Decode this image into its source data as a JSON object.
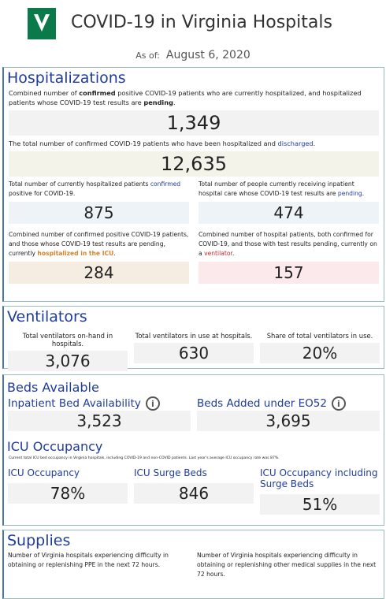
{
  "header": {
    "title": "COVID-19 in Virginia Hospitals",
    "as_of_label": "As of:",
    "as_of_date": "August 6, 2020"
  },
  "hospitalizations": {
    "title": "Hospitalizations",
    "current": {
      "description": [
        {
          "text": "Combined number of "
        },
        {
          "text": "confirmed",
          "bold": true
        },
        {
          "text": " positive COVID-19 patients who are currently hospitalized, and hospitalized patients whose COVID-19 test results are "
        },
        {
          "text": "pending",
          "bold": true
        },
        {
          "text": "."
        }
      ],
      "value": "1,349"
    },
    "discharged": {
      "description": [
        {
          "text": "The total number of confirmed COVID-19 patients who have been hospitalized and "
        },
        {
          "text": "discharged",
          "color": "#1f3c9c"
        },
        {
          "text": "."
        }
      ],
      "value": "12,635"
    },
    "confirmed": {
      "description": [
        {
          "text": "Total number of currently hospitalized patients "
        },
        {
          "text": "confirmed",
          "color": "#1f3c9c"
        },
        {
          "text": " positive for COVID-19."
        }
      ],
      "value": "875"
    },
    "pending": {
      "description": [
        {
          "text": "Total number of people currently receiving inpatient hospital care whose COVID-19 test results are "
        },
        {
          "text": "pending",
          "color": "#1f3c9c"
        },
        {
          "text": "."
        }
      ],
      "value": "474"
    },
    "icu": {
      "description": [
        {
          "text": "Combined number of confirmed positive COVID-19 patients, and those whose COVID-19 test results are pending, currently "
        },
        {
          "text": "hospitalized in the ICU",
          "color": "#d9822b",
          "bold": true
        },
        {
          "text": "."
        }
      ],
      "value": "284"
    },
    "ventilator": {
      "description": [
        {
          "text": "Combined number of hospital patients, both confirmed for COVID-19, and those with test results pending, currently on a "
        },
        {
          "text": "ventilator",
          "color": "#c0282d"
        },
        {
          "text": "."
        }
      ],
      "value": "157"
    }
  },
  "ventilators": {
    "title": "Ventilators",
    "metrics": [
      {
        "label": "Total ventilators on-hand in hospitals.",
        "value": "3,076"
      },
      {
        "label": "Total ventilators in use at hospitals.",
        "value": "630"
      },
      {
        "label": "Share of total ventilators in use.",
        "value": "20%"
      }
    ]
  },
  "beds_available": {
    "title": "Beds Available",
    "metrics": [
      {
        "label": "Inpatient Bed Availability",
        "value": "3,523"
      },
      {
        "label": "Beds Added under EO52",
        "value": "3,695"
      }
    ]
  },
  "icu_occupancy": {
    "title": "ICU Occupancy",
    "note": "Current total ICU bed occupancy in Virginia hospitals, including COVID-19 and non-COVID patients. Last year's average ICU occupancy rate was 87%.",
    "metrics": [
      {
        "label": "ICU Occupancy",
        "value": "78%"
      },
      {
        "label": "ICU Surge Beds",
        "value": "846"
      },
      {
        "label": "ICU Occupancy including Surge Beds",
        "value": "51%"
      }
    ]
  },
  "supplies": {
    "title": "Supplies",
    "metrics": [
      {
        "label": "Number of Virginia hospitals experiencing difficulty in obtaining or replenishing PPE in the next 72 hours."
      },
      {
        "label": "Number of Virginia hospitals experiencing difficulty in obtaining or replenishing other medical supplies in the next 72 hours."
      }
    ]
  }
}
